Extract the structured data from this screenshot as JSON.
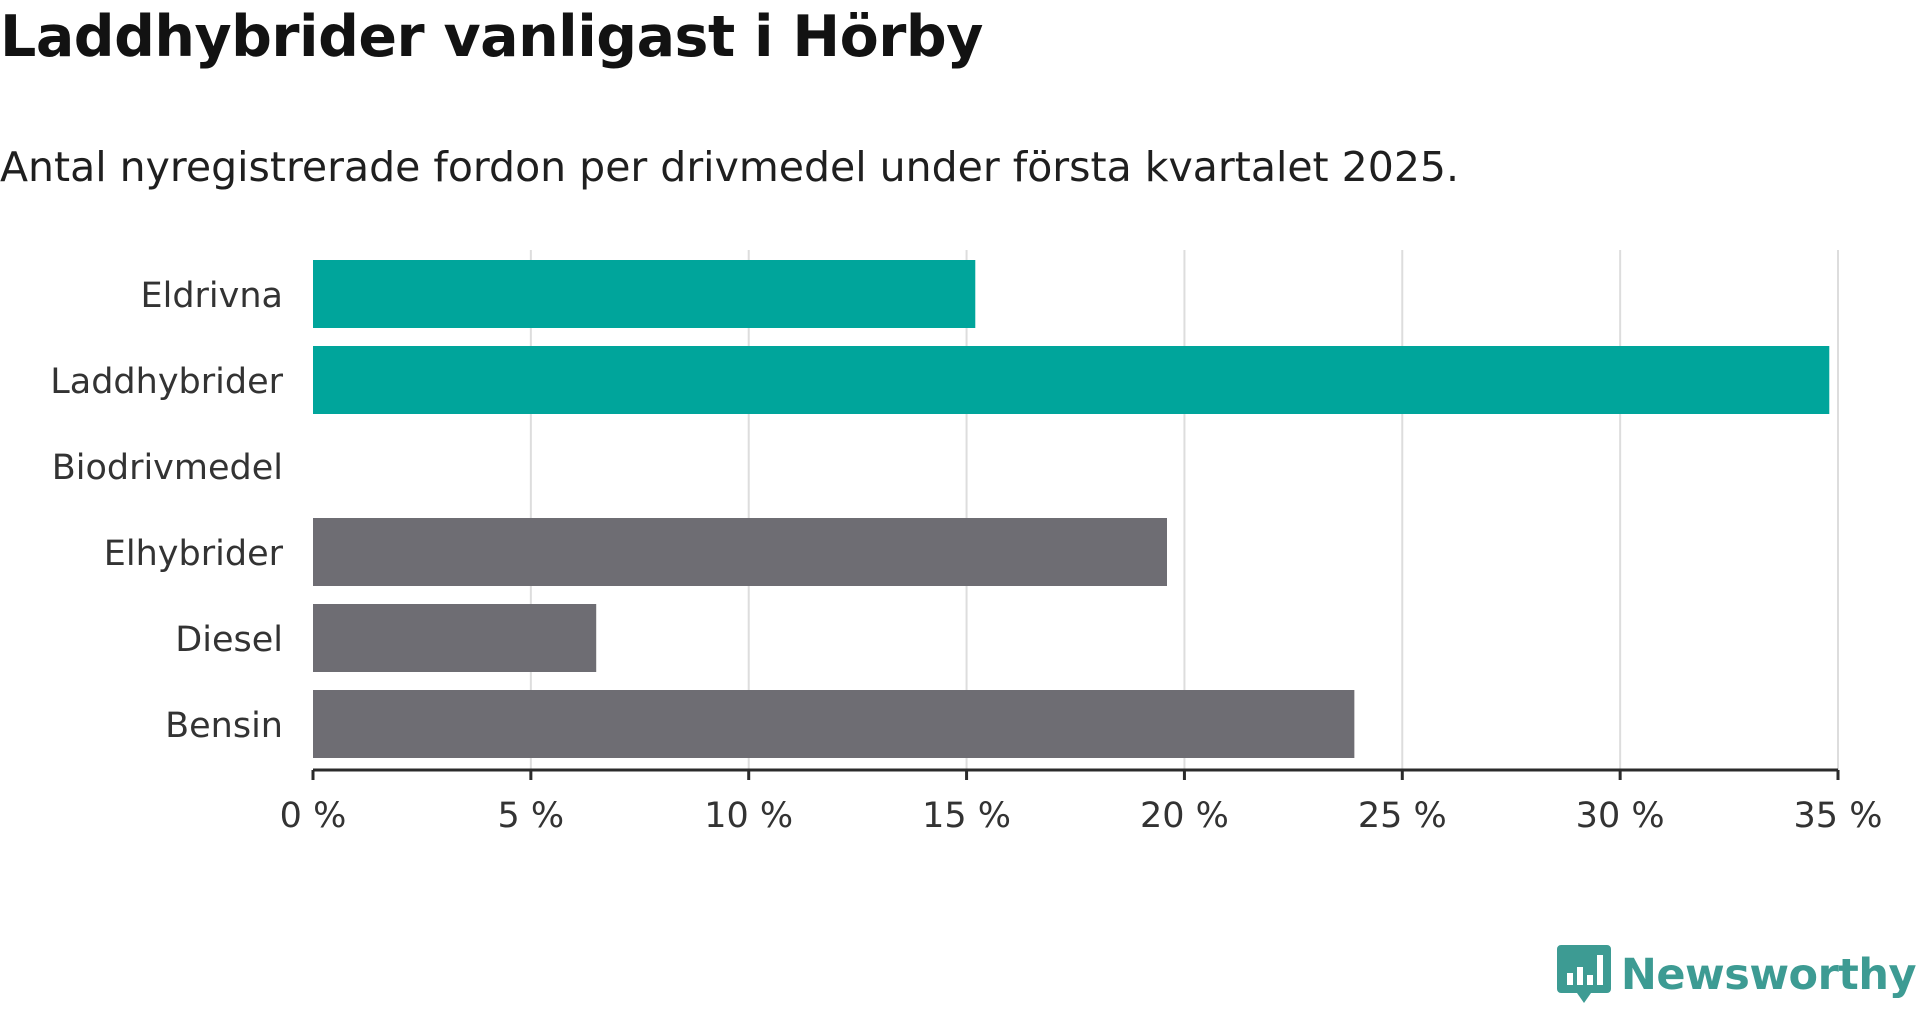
{
  "chart_data": {
    "type": "bar",
    "orientation": "horizontal",
    "title": "Laddhybrider vanligast i Hörby",
    "subtitle": "Antal nyregistrerade fordon per drivmedel under första kvartalet 2025.",
    "categories": [
      "Eldrivna",
      "Laddhybrider",
      "Biodrivmedel",
      "Elhybrider",
      "Diesel",
      "Bensin"
    ],
    "values": [
      15.2,
      34.8,
      0,
      19.6,
      6.5,
      23.9
    ],
    "bar_colors": [
      "#00a59b",
      "#00a59b",
      "#00a59b",
      "#6e6d73",
      "#6e6d73",
      "#6e6d73"
    ],
    "xlim": [
      0,
      35
    ],
    "ticks": [
      0,
      5,
      10,
      15,
      20,
      25,
      30,
      35
    ],
    "tick_labels": [
      "0 %",
      "5 %",
      "10 %",
      "15 %",
      "20 %",
      "25 %",
      "30 %",
      "35 %"
    ],
    "xlabel": "",
    "ylabel": "",
    "grid": true,
    "legend": "none"
  },
  "branding": {
    "name": "Newsworthy",
    "color": "#3d9b93"
  },
  "colors": {
    "grid": "#dddddd",
    "axis": "#2b2b2b",
    "label": "#333333"
  }
}
